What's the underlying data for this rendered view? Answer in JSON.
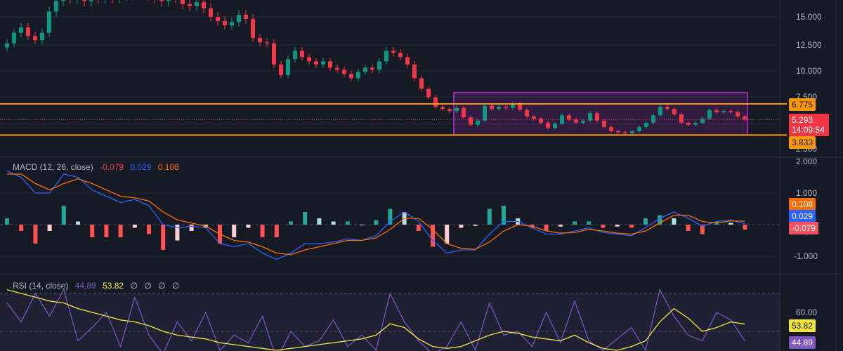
{
  "colors": {
    "background": "#161a25",
    "up": "#089981",
    "down": "#f23645",
    "level": "#ff9800",
    "box": "#9c27b0",
    "macd": "#2962ff",
    "signal": "#ff6d00",
    "rsi": "#7e57c2",
    "rsi_ma": "#f5e53b"
  },
  "price_axis": {
    "ticks": [
      "15.000",
      "12.500",
      "10.000",
      "7.500",
      "2.500"
    ]
  },
  "price_tags": {
    "upper_level": "6.775",
    "lower_level": "3.833",
    "last_price": "5.293",
    "countdown": "14:09:54"
  },
  "macd": {
    "title": "MACD (12, 26, close)",
    "hist": "-0.079",
    "macd": "0.029",
    "signal": "0.108",
    "axis": [
      "2.000",
      "1.000",
      "-1.000"
    ]
  },
  "rsi": {
    "title": "RSI (14, close)",
    "rsi": "44.89",
    "ma": "53.82",
    "extras": [
      "∅",
      "∅",
      "∅",
      "∅"
    ],
    "axis": [
      "60.00"
    ]
  },
  "chart_data": [
    {
      "type": "candlestick",
      "levels": [
        6.775,
        3.833
      ],
      "box": {
        "from_bar": 64,
        "to_bar": 105,
        "top": 7.85,
        "bottom": 3.833
      },
      "last": 5.293,
      "closes": [
        12.5,
        13.5,
        14,
        13.2,
        12.8,
        13.5,
        15.5,
        16.5,
        17,
        16.8,
        17.2,
        16.5,
        17,
        16.8,
        17.2,
        16.8,
        17.5,
        17,
        17.3,
        17.6,
        17,
        16.8,
        16.5,
        17,
        16.8,
        16.2,
        16,
        16.4,
        15.8,
        15,
        14.6,
        14.2,
        14.5,
        15.2,
        14.8,
        13,
        12.6,
        12.5,
        10.5,
        9.5,
        11,
        11.8,
        11.2,
        10.8,
        10.5,
        10.8,
        10.2,
        10,
        9.6,
        9.2,
        9.8,
        10.2,
        10,
        10.8,
        11.8,
        11.6,
        11.2,
        10.5,
        9.2,
        8.2,
        7.4,
        6.5,
        6.3,
        6.1,
        6.4,
        5.5,
        4.8,
        5.2,
        6.6,
        6.3,
        6.5,
        6.4,
        6.8,
        6.2,
        5.6,
        5.4,
        5,
        4.5,
        4.9,
        5.7,
        5.3,
        5,
        5.2,
        5.9,
        5.2,
        4.6,
        4.2,
        4.1,
        4,
        4.2,
        4.6,
        5,
        5.7,
        6.5,
        6.3,
        5.8,
        5,
        4.8,
        5,
        5.4,
        6.2,
        6,
        6.1,
        6,
        5.6,
        5.293
      ]
    },
    {
      "type": "line",
      "name": "MACD",
      "macd": [
        1.7,
        1.5,
        1.0,
        1.0,
        1.6,
        1.5,
        1.1,
        0.9,
        0.7,
        0.8,
        0.6,
        0.0,
        -0.1,
        -0.05,
        -0.1,
        -0.6,
        -0.7,
        -0.6,
        -0.9,
        -1.1,
        -0.9,
        -0.6,
        -0.6,
        -0.55,
        -0.45,
        -0.5,
        -0.35,
        0.1,
        0.4,
        0.1,
        -0.5,
        -0.9,
        -0.8,
        -0.8,
        -0.3,
        0.1,
        0.1,
        -0.1,
        -0.3,
        -0.3,
        -0.2,
        -0.1,
        -0.25,
        -0.3,
        -0.35,
        -0.1,
        0.2,
        0.4,
        0.2,
        -0.05,
        0.1,
        0.15,
        0.029
      ],
      "signal": [
        1.6,
        1.6,
        1.3,
        1.1,
        1.3,
        1.45,
        1.3,
        1.1,
        0.9,
        0.85,
        0.75,
        0.4,
        0.15,
        0.05,
        -0.05,
        -0.3,
        -0.5,
        -0.55,
        -0.7,
        -0.9,
        -0.95,
        -0.8,
        -0.7,
        -0.6,
        -0.5,
        -0.5,
        -0.42,
        -0.15,
        0.2,
        0.2,
        -0.15,
        -0.6,
        -0.75,
        -0.78,
        -0.55,
        -0.2,
        0,
        -0.05,
        -0.2,
        -0.27,
        -0.25,
        -0.15,
        -0.2,
        -0.27,
        -0.3,
        -0.2,
        0.05,
        0.3,
        0.3,
        0.1,
        0.05,
        0.12,
        0.108
      ]
    },
    {
      "type": "line",
      "name": "RSI",
      "rsi": [
        65,
        55,
        70,
        58,
        72,
        45,
        52,
        60,
        42,
        68,
        48,
        38,
        55,
        45,
        60,
        40,
        48,
        44,
        58,
        35,
        50,
        42,
        45,
        56,
        42,
        48,
        40,
        70,
        55,
        45,
        38,
        42,
        55,
        40,
        65,
        48,
        50,
        42,
        60,
        44,
        66,
        45,
        40,
        46,
        52,
        40,
        72,
        58,
        48,
        45,
        60,
        56,
        44.89
      ],
      "ma": [
        72,
        70,
        68,
        66,
        65,
        62,
        60,
        58,
        56,
        55,
        53,
        50,
        48,
        47,
        46,
        44,
        43,
        42,
        41,
        40,
        41,
        42,
        43,
        44,
        45,
        46,
        48,
        54,
        52,
        46,
        42,
        41,
        42,
        45,
        48,
        50,
        49,
        47,
        46,
        45,
        48,
        44,
        41,
        40,
        42,
        45,
        55,
        62,
        57,
        50,
        52,
        55,
        53.82
      ]
    }
  ]
}
